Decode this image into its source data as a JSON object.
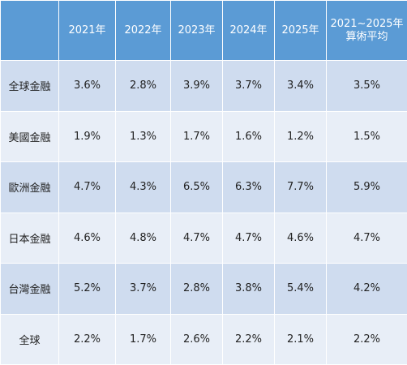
{
  "table": {
    "header": [
      "",
      "2021年",
      "2022年",
      "2023年",
      "2024年",
      "2025年",
      "2021~2025年\n算術平均"
    ],
    "rows": [
      [
        "全球金融",
        "3.6%",
        "2.8%",
        "3.9%",
        "3.7%",
        "3.4%",
        "3.5%"
      ],
      [
        "美國金融",
        "1.9%",
        "1.3%",
        "1.7%",
        "1.6%",
        "1.2%",
        "1.5%"
      ],
      [
        "歐洲金融",
        "4.7%",
        "4.3%",
        "6.5%",
        "6.3%",
        "7.7%",
        "5.9%"
      ],
      [
        "日本金融",
        "4.6%",
        "4.8%",
        "4.7%",
        "4.7%",
        "4.6%",
        "4.7%"
      ],
      [
        "台灣金融",
        "5.2%",
        "3.7%",
        "2.8%",
        "3.8%",
        "5.4%",
        "4.2%"
      ],
      [
        "全球",
        "2.2%",
        "1.7%",
        "2.6%",
        "2.2%",
        "2.1%",
        "2.2%"
      ]
    ]
  }
}
